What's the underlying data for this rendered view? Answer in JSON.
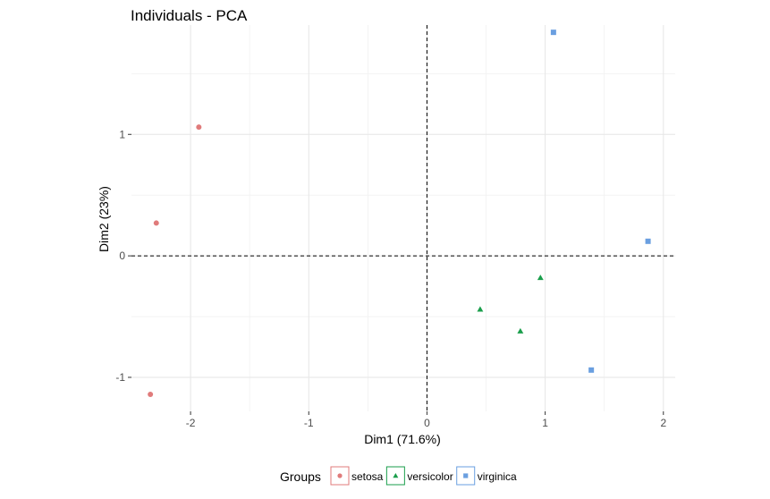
{
  "chart_data": {
    "type": "scatter",
    "title": "Individuals - PCA",
    "xlabel": "Dim1 (71.6%)",
    "ylabel": "Dim2 (23%)",
    "xlim": [
      -2.5,
      2.1
    ],
    "ylim": [
      -1.28,
      1.9
    ],
    "x_ticks": [
      -2,
      -1,
      0,
      1,
      2
    ],
    "y_ticks": [
      -1,
      0,
      1
    ],
    "grid": true,
    "reference_lines": {
      "x": 0,
      "y": 0,
      "style": "dashed"
    },
    "legend": {
      "title": "Groups",
      "placement": "bottom"
    },
    "series": [
      {
        "name": "setosa",
        "color": "#e07b7b",
        "marker": "circle",
        "points": [
          {
            "x": -1.93,
            "y": 1.06
          },
          {
            "x": -2.29,
            "y": 0.27
          },
          {
            "x": -2.34,
            "y": -1.14
          }
        ]
      },
      {
        "name": "versicolor",
        "color": "#1a9e4b",
        "marker": "triangle",
        "points": [
          {
            "x": 0.96,
            "y": -0.18
          },
          {
            "x": 0.45,
            "y": -0.44
          },
          {
            "x": 0.79,
            "y": -0.62
          }
        ]
      },
      {
        "name": "virginica",
        "color": "#6a9fe0",
        "marker": "square",
        "points": [
          {
            "x": 1.07,
            "y": 1.84
          },
          {
            "x": 1.87,
            "y": 0.12
          },
          {
            "x": 1.39,
            "y": -0.94
          }
        ]
      }
    ]
  }
}
